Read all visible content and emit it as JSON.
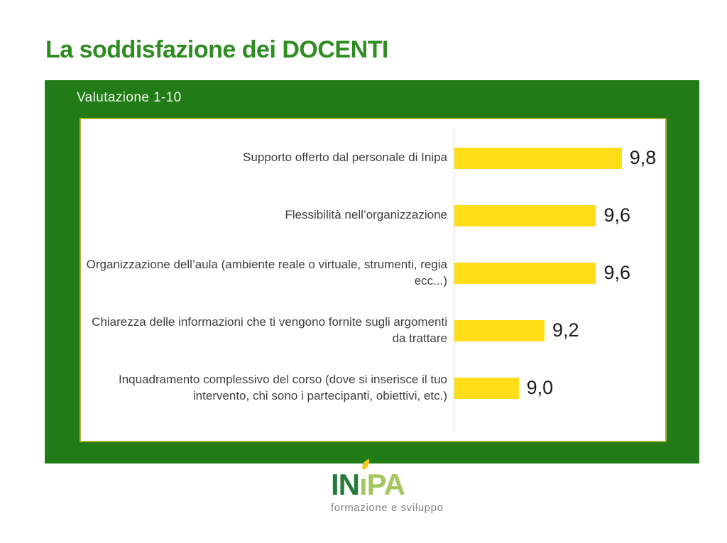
{
  "slide": {
    "title": "La soddisfazione dei DOCENTI",
    "subtitle": "Valutazione 1-10"
  },
  "chart_data": {
    "type": "bar",
    "orientation": "horizontal",
    "title": "Valutazione 1-10",
    "categories": [
      "Supporto offerto dal personale di Inipa",
      "Flessibilità nell’organizzazione",
      "Organizzazione dell’aula (ambiente reale o virtuale, strumenti, regia ecc...)",
      "Chiarezza delle informazioni che ti vengono fornite sugli argomenti da trattare",
      "Inquadramento complessivo del corso (dove si inserisce il tuo intervento, chi sono i partecipanti, obiettivi, etc.)"
    ],
    "values": [
      9.8,
      9.6,
      9.6,
      9.2,
      9.0
    ],
    "value_labels": [
      "9,8",
      "9,6",
      "9,6",
      "9,2",
      "9,0"
    ],
    "xlim": [
      8.5,
      10
    ],
    "grid": false,
    "legend": false,
    "bar_color": "#FFDE17"
  },
  "footer": {
    "logo_part1": "IN",
    "logo_part2": "ı",
    "logo_part3": "PA",
    "logo_name": "INIPA",
    "tagline": "formazione e sviluppo"
  },
  "colors": {
    "accent_green": "#217C17",
    "title_green": "#2E8C21",
    "bar_yellow": "#FFDE17",
    "box_border_olive": "#B0B13D",
    "axis_gray": "#D9D9D9",
    "label_gray": "#3F3F3F",
    "value_dark": "#1C1C1C",
    "logo_dark_green": "#267B3B",
    "logo_light_green": "#A5C75E",
    "leaf_yellow": "#F4C51D",
    "tagline_gray": "#828282",
    "subtitle_white": "#F1F6EF"
  }
}
